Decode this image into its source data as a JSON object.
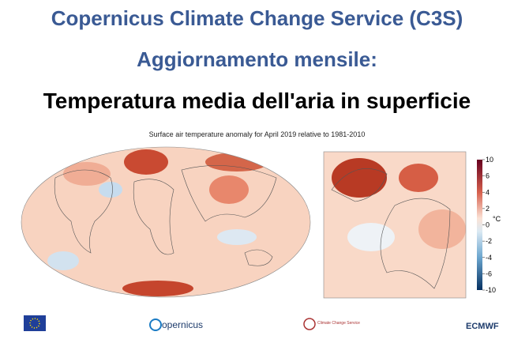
{
  "header": {
    "title": "Copernicus Climate Change Service (C3S)",
    "subtitle": "Aggiornamento mensile:",
    "heading": "Temperatura media dell'aria in superficie"
  },
  "figure": {
    "caption": "Surface air temperature anomaly for April 2019 relative to 1981-2010",
    "colorbar": {
      "unit": "°C",
      "ticks": [
        10,
        6,
        4,
        2,
        0,
        -2,
        -4,
        -6,
        -10
      ]
    }
  },
  "logos": {
    "copernicus": "opernicus",
    "c3s": "Climate Change Service",
    "ecmwf": "ECMWF"
  }
}
